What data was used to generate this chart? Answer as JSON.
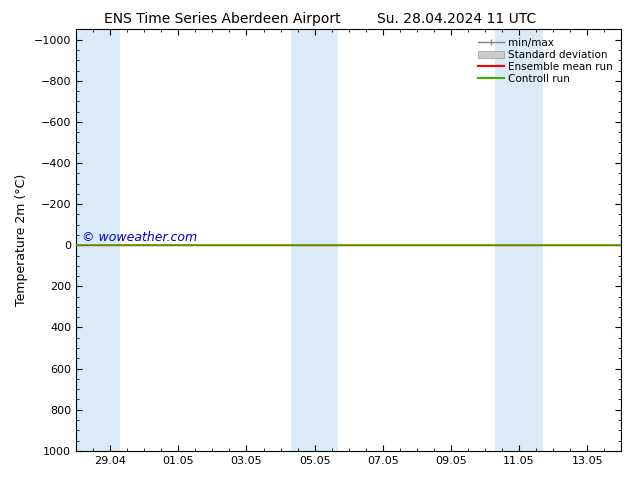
{
  "title": "ENS Time Series Aberdeen Airport",
  "title2": "Su. 28.04.2024 11 UTC",
  "ylabel": "Temperature 2m (°C)",
  "ylim_bottom": 1000,
  "ylim_top": -1050,
  "yticks": [
    -1000,
    -800,
    -600,
    -400,
    -200,
    0,
    200,
    400,
    600,
    800,
    1000
  ],
  "shade_color": "#daeaf7",
  "green_line_color": "#44aa00",
  "red_line_color": "#ff0000",
  "watermark": "© woweather.com",
  "watermark_color": "#0000cc",
  "background_color": "#ffffff",
  "legend_entries": [
    "min/max",
    "Standard deviation",
    "Ensemble mean run",
    "Controll run"
  ],
  "legend_line_color": "#888888",
  "legend_std_color": "#cccccc",
  "xtick_labels": [
    "29.04",
    "01.05",
    "03.05",
    "05.05",
    "07.05",
    "09.05",
    "11.05",
    "13.05"
  ],
  "xtick_positions": [
    1,
    3,
    5,
    7,
    9,
    11,
    13,
    15
  ],
  "xlim": [
    0,
    16
  ],
  "shade_bands": [
    [
      0.0,
      1.3
    ],
    [
      6.3,
      7.0
    ],
    [
      7.0,
      7.7
    ],
    [
      12.3,
      13.0
    ],
    [
      13.0,
      13.7
    ]
  ]
}
